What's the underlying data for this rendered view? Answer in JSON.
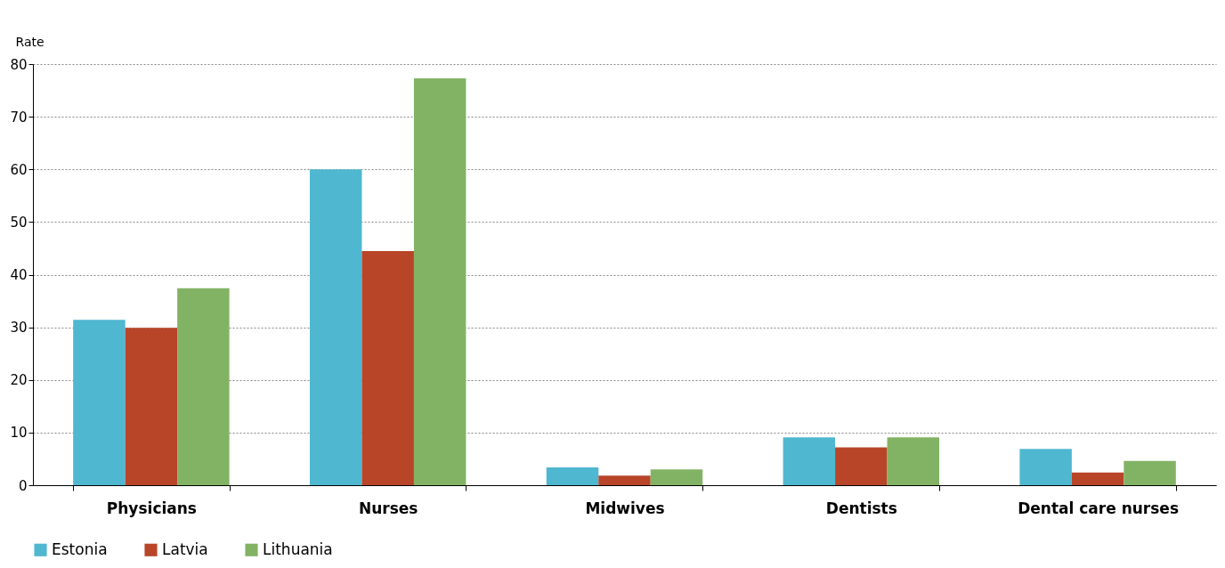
{
  "chart_data": {
    "type": "bar",
    "ylabel": "Rate",
    "categories": [
      "Physicians",
      "Nurses",
      "Midwives",
      "Dentists",
      "Dental care nurses"
    ],
    "series": [
      {
        "name": "Estonia",
        "color": "#4fb7d0",
        "values": [
          31.4,
          60,
          3.4,
          9.1,
          6.9
        ]
      },
      {
        "name": "Latvia",
        "color": "#b84528",
        "values": [
          29.9,
          44.5,
          1.8,
          7.2,
          2.4
        ]
      },
      {
        "name": "Lithuania",
        "color": "#82b365",
        "values": [
          37.4,
          77.3,
          3.0,
          9.1,
          4.6
        ]
      }
    ],
    "ylim": [
      0,
      80
    ],
    "yticks": [
      0,
      10,
      20,
      30,
      40,
      50,
      60,
      70,
      80
    ],
    "grid": "y",
    "legend": "bottom"
  }
}
